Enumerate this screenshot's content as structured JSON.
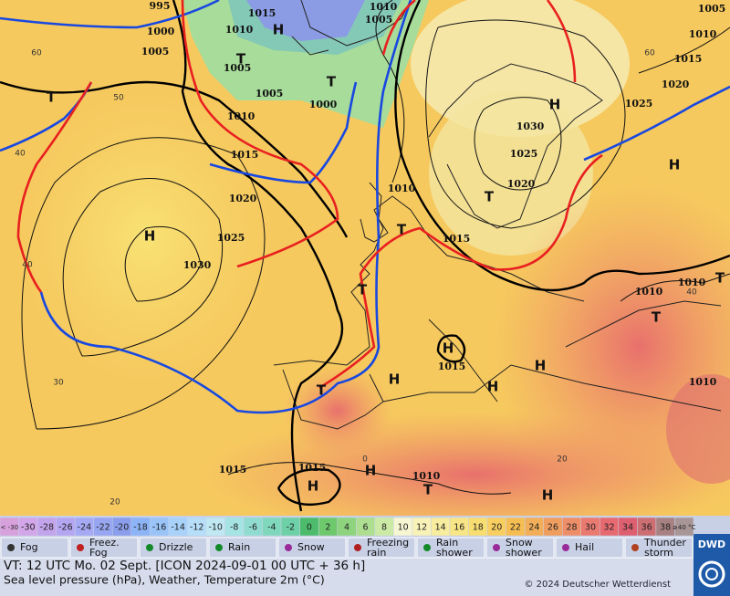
{
  "map": {
    "pressure_labels": [
      "995",
      "1000",
      "1005",
      "1015",
      "1010",
      "1005",
      "1005",
      "1010",
      "1015",
      "1020",
      "1025",
      "1030",
      "1000",
      "1010",
      "1005",
      "1010",
      "1015",
      "1030",
      "1025",
      "1020",
      "1025",
      "1020",
      "1015",
      "1010",
      "1005",
      "1010",
      "1010",
      "1015",
      "1010",
      "1015",
      "1015",
      "1010"
    ],
    "centers": [
      "H",
      "T",
      "T",
      "T",
      "H",
      "H",
      "T",
      "H",
      "T",
      "T",
      "T",
      "H",
      "H",
      "H",
      "H",
      "T",
      "H",
      "H",
      "T",
      "H",
      "T"
    ],
    "temperature_labels": [
      "60",
      "50",
      "40",
      "40",
      "30",
      "20",
      "0",
      "20",
      "60",
      "40"
    ]
  },
  "legend": {
    "color_scale": [
      {
        "label": "< -30",
        "color": "#d7a1dc"
      },
      {
        "label": "-30",
        "color": "#d2a6e8"
      },
      {
        "label": "-28",
        "color": "#c3a4ec"
      },
      {
        "label": "-26",
        "color": "#b4a6f1"
      },
      {
        "label": "-24",
        "color": "#a6aaf4"
      },
      {
        "label": "-22",
        "color": "#98a6f2"
      },
      {
        "label": "-20",
        "color": "#8a9eec"
      },
      {
        "label": "-18",
        "color": "#8cb4f6"
      },
      {
        "label": "-16",
        "color": "#9ac4f8"
      },
      {
        "label": "-14",
        "color": "#a8d2fa"
      },
      {
        "label": "-12",
        "color": "#b6def9"
      },
      {
        "label": "-10",
        "color": "#c0e8f2"
      },
      {
        "label": "-8",
        "color": "#a6e4e4"
      },
      {
        "label": "-6",
        "color": "#90dcd0"
      },
      {
        "label": "-4",
        "color": "#80d8bc"
      },
      {
        "label": "-2",
        "color": "#6ed0a6"
      },
      {
        "label": "0",
        "color": "#4cbc6c"
      },
      {
        "label": "2",
        "color": "#6ec86c"
      },
      {
        "label": "4",
        "color": "#8ed47e"
      },
      {
        "label": "6",
        "color": "#aede90"
      },
      {
        "label": "8",
        "color": "#cceaa6"
      },
      {
        "label": "10",
        "color": "#f6f6d2"
      },
      {
        "label": "12",
        "color": "#f8f2b8"
      },
      {
        "label": "14",
        "color": "#f8ec9e"
      },
      {
        "label": "16",
        "color": "#f8e686"
      },
      {
        "label": "18",
        "color": "#f8de70"
      },
      {
        "label": "20",
        "color": "#f8ce60"
      },
      {
        "label": "22",
        "color": "#f6be52"
      },
      {
        "label": "24",
        "color": "#f2ae58"
      },
      {
        "label": "26",
        "color": "#f09e60"
      },
      {
        "label": "28",
        "color": "#ee8e68"
      },
      {
        "label": "30",
        "color": "#ea7a70"
      },
      {
        "label": "32",
        "color": "#e66a70"
      },
      {
        "label": "34",
        "color": "#de6070"
      },
      {
        "label": "36",
        "color": "#cc6e72"
      },
      {
        "label": "38",
        "color": "#a88282"
      },
      {
        "label": "≥40 °C",
        "color": "#a89696"
      }
    ],
    "weather": [
      "Fog",
      "Freez. Fog",
      "Drizzle",
      "Rain",
      "Snow",
      "Freezing rain",
      "Rain shower",
      "Snow shower",
      "Hail",
      "Thunder storm"
    ]
  },
  "footer": {
    "valid_time": "VT: 12 UTC Mo.  02 Sept. [ICON 2024-09-01  00 UTC + 36 h]",
    "description": "Sea level pressure (hPa), Weather, Temperature 2m (°C)",
    "copyright": "© 2024 Deutscher Wetterdienst",
    "logo": "DWD"
  }
}
